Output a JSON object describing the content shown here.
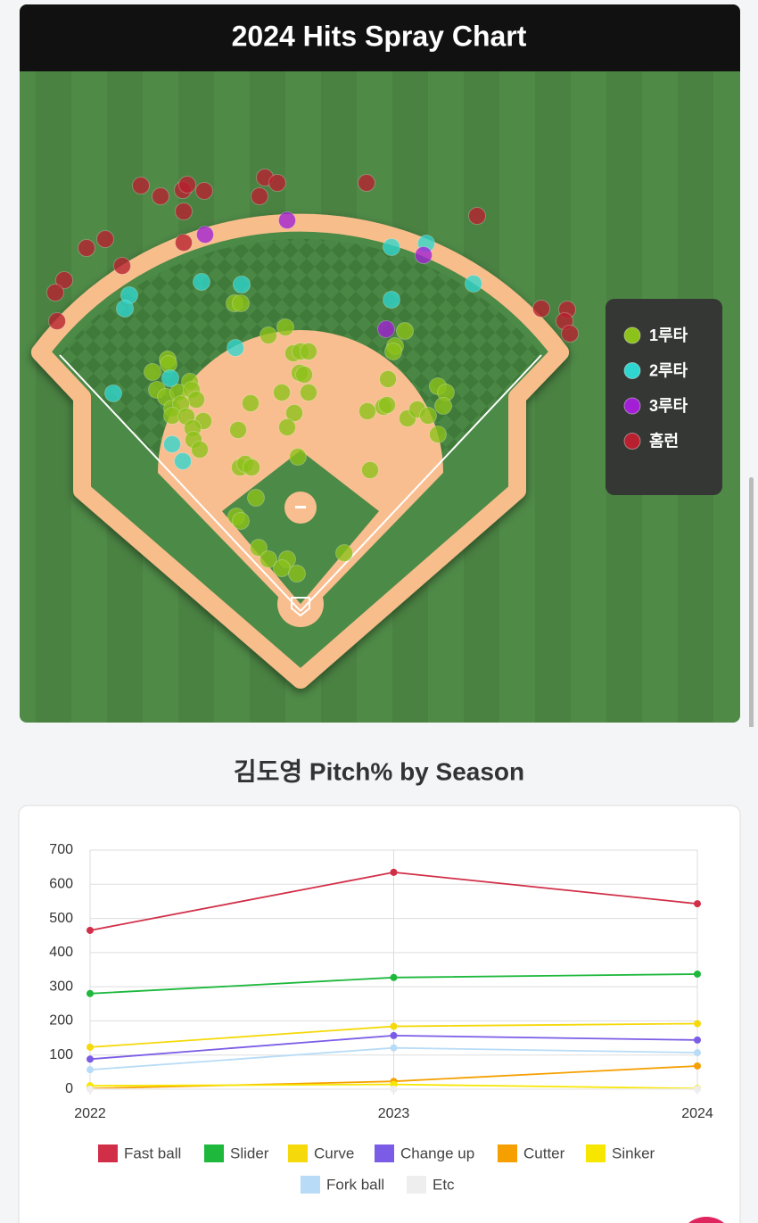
{
  "chart_data": [
    {
      "type": "scatter",
      "title": "2024 Hits Spray Chart",
      "legend": "right",
      "y_axis_down": true,
      "xlim": [
        22,
        830
      ],
      "ylim": [
        5,
        810
      ],
      "series": [
        {
          "name": "1루타",
          "color": "#8cc21a",
          "x": [
            263,
            270,
            301,
            320,
            329,
            337,
            346,
            336,
            341,
            454,
            443,
            441,
            435,
            171,
            188,
            189,
            176,
            186,
            213,
            200,
            215,
            220,
            193,
            203,
            193,
            209,
            228,
            216,
            217,
            224,
            281,
            316,
            346,
            330,
            322,
            267,
            269,
            275,
            282,
            334,
            412,
            430,
            434,
            457,
            468,
            480,
            491,
            500,
            497,
            491,
            415,
            287,
            265,
            270,
            290,
            301,
            322,
            316,
            333,
            386
          ],
          "y": [
            340,
            340,
            376,
            367,
            396,
            394,
            394,
            418,
            420,
            371,
            388,
            394,
            425,
            417,
            403,
            408,
            437,
            445,
            428,
            440,
            437,
            448,
            458,
            453,
            466,
            467,
            472,
            480,
            493,
            504,
            452,
            440,
            440,
            463,
            479,
            482,
            524,
            520,
            524,
            512,
            461,
            456,
            454,
            469,
            459,
            466,
            433,
            440,
            455,
            487,
            527,
            558,
            579,
            584,
            614,
            627,
            627,
            637,
            643,
            620
          ]
        },
        {
          "name": "2루타",
          "color": "#2fd6d0",
          "x": [
            145,
            140,
            226,
            271,
            439,
            478,
            531,
            439,
            264,
            127,
            191,
            193,
            205
          ],
          "y": [
            331,
            346,
            316,
            319,
            277,
            273,
            318,
            336,
            390,
            441,
            424,
            498,
            517
          ]
        },
        {
          "name": "3루타",
          "color": "#a21fd6",
          "x": [
            230,
            322,
            475,
            433
          ],
          "y": [
            263,
            247,
            286,
            369
          ]
        },
        {
          "name": "홈런",
          "color": "#b8202f",
          "x": [
            158,
            180,
            205,
            210,
            229,
            206,
            297,
            311,
            291,
            411,
            535,
            206,
            97,
            118,
            137,
            72,
            62,
            64,
            607,
            636,
            633,
            639
          ],
          "y": [
            208,
            220,
            213,
            207,
            214,
            237,
            199,
            205,
            220,
            205,
            242,
            272,
            278,
            268,
            298,
            314,
            328,
            360,
            346,
            347,
            360,
            374
          ]
        }
      ]
    },
    {
      "type": "line",
      "title": "김도영 Pitch% by Season",
      "legend": "bottom",
      "grid": true,
      "categories": [
        "2022",
        "2023",
        "2024"
      ],
      "ylim": [
        0,
        700
      ],
      "yticks": [
        0,
        100,
        200,
        300,
        400,
        500,
        600,
        700
      ],
      "series": [
        {
          "name": "Fast ball",
          "color": "#d12f48",
          "values": [
            465,
            635,
            543
          ]
        },
        {
          "name": "Slider",
          "color": "#1db83c",
          "values": [
            280,
            327,
            337
          ]
        },
        {
          "name": "Curve",
          "color": "#f5d90a",
          "values": [
            123,
            184,
            192
          ]
        },
        {
          "name": "Change up",
          "color": "#7b5ce6",
          "values": [
            88,
            157,
            144
          ]
        },
        {
          "name": "Cutter",
          "color": "#f5a000",
          "values": [
            2,
            23,
            68
          ]
        },
        {
          "name": "Sinker",
          "color": "#f7e600",
          "values": [
            10,
            14,
            2
          ]
        },
        {
          "name": "Fork ball",
          "color": "#b8dcf7",
          "values": [
            57,
            121,
            107
          ]
        },
        {
          "name": "Etc",
          "color": "#eeeeee",
          "values": [
            0,
            0,
            0
          ]
        }
      ]
    }
  ]
}
